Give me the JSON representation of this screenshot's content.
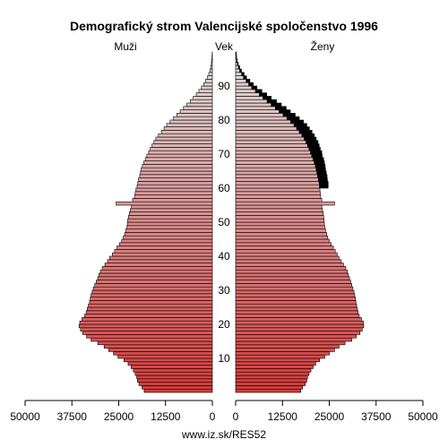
{
  "chart_data": {
    "type": "bar",
    "title": "Demografický strom Valencijské spoločenstvo 1996",
    "left_label": "Muži",
    "center_label": "Vek",
    "right_label": "Ženy",
    "source": "www.iz.sk/RES52",
    "xlim": [
      0,
      50000
    ],
    "x_ticks": [
      50000,
      37500,
      25000,
      12500,
      0
    ],
    "y_ticks": [
      10,
      20,
      30,
      40,
      50,
      60,
      70,
      80,
      90
    ],
    "ages_range": [
      0,
      100
    ],
    "grid": false,
    "series": [
      {
        "name": "Muži",
        "values": [
          18200,
          18800,
          19600,
          20000,
          20200,
          20600,
          21100,
          21700,
          22500,
          23600,
          25200,
          26400,
          27700,
          28900,
          30600,
          32400,
          33600,
          34600,
          35200,
          35600,
          35400,
          34800,
          34100,
          33700,
          33400,
          33100,
          32800,
          32600,
          32400,
          32100,
          31800,
          31400,
          31000,
          30600,
          30300,
          29900,
          29400,
          28700,
          28000,
          27400,
          26700,
          26100,
          25500,
          24800,
          24200,
          23800,
          23400,
          23100,
          22800,
          22700,
          22600,
          22400,
          22200,
          21900,
          21600,
          25700,
          21300,
          20800,
          20600,
          20400,
          20100,
          19900,
          19700,
          19400,
          19200,
          19000,
          18700,
          18300,
          17900,
          17500,
          17000,
          16600,
          16100,
          15600,
          15100,
          14400,
          13600,
          12900,
          12200,
          11300,
          10400,
          9500,
          8600,
          7700,
          6800,
          5900,
          5100,
          4300,
          3600,
          2900,
          2300,
          1800,
          1300,
          950,
          650,
          420,
          270,
          160,
          90,
          50
        ]
      },
      {
        "name": "Ženy",
        "values": [
          17400,
          17900,
          18600,
          19000,
          19200,
          19600,
          20100,
          20700,
          21400,
          22400,
          23800,
          25000,
          26400,
          27600,
          29200,
          31000,
          32200,
          33200,
          33800,
          34200,
          34100,
          33600,
          33000,
          32700,
          32500,
          32300,
          32100,
          32000,
          31800,
          31600,
          31300,
          31000,
          30700,
          30400,
          30100,
          29800,
          29400,
          28800,
          28200,
          27600,
          27100,
          26600,
          26100,
          25500,
          25000,
          24600,
          24300,
          24000,
          23800,
          23700,
          23600,
          23500,
          23400,
          23200,
          23000,
          26400,
          23000,
          22700,
          22600,
          22500,
          22400,
          22300,
          22100,
          21900,
          21700,
          21500,
          21300,
          21000,
          20700,
          20300,
          20000,
          19600,
          19200,
          18800,
          18300,
          17700,
          17000,
          16300,
          15600,
          14700,
          13700,
          12700,
          11600,
          10600,
          9500,
          8400,
          7300,
          6300,
          5300,
          4300,
          3500,
          2800,
          2100,
          1600,
          1100,
          750,
          480,
          290,
          170,
          100
        ]
      },
      {
        "name": "Ženy-prebytok",
        "values": [
          0,
          0,
          0,
          0,
          0,
          0,
          0,
          0,
          0,
          0,
          0,
          0,
          0,
          0,
          0,
          0,
          0,
          0,
          0,
          0,
          0,
          0,
          0,
          0,
          0,
          0,
          0,
          0,
          0,
          0,
          0,
          0,
          0,
          0,
          0,
          0,
          0,
          0,
          0,
          0,
          0,
          0,
          0,
          0,
          0,
          0,
          0,
          0,
          0,
          0,
          0,
          0,
          0,
          0,
          0,
          0,
          0,
          0,
          0,
          0,
          2300,
          2400,
          2400,
          2500,
          2500,
          2500,
          2600,
          2700,
          2800,
          2800,
          3000,
          3000,
          3100,
          3200,
          3200,
          3300,
          3400,
          3400,
          3400,
          3400,
          3300,
          3200,
          3000,
          2900,
          2700,
          2500,
          2200,
          2000,
          1700,
          1400,
          1200,
          1000,
          800,
          650,
          450,
          330,
          210,
          130,
          80,
          50
        ]
      }
    ],
    "colors": {
      "bottom": "#d73a3a",
      "top": "#dfdfdf",
      "excess": "#000000",
      "outline": "#000000"
    }
  }
}
